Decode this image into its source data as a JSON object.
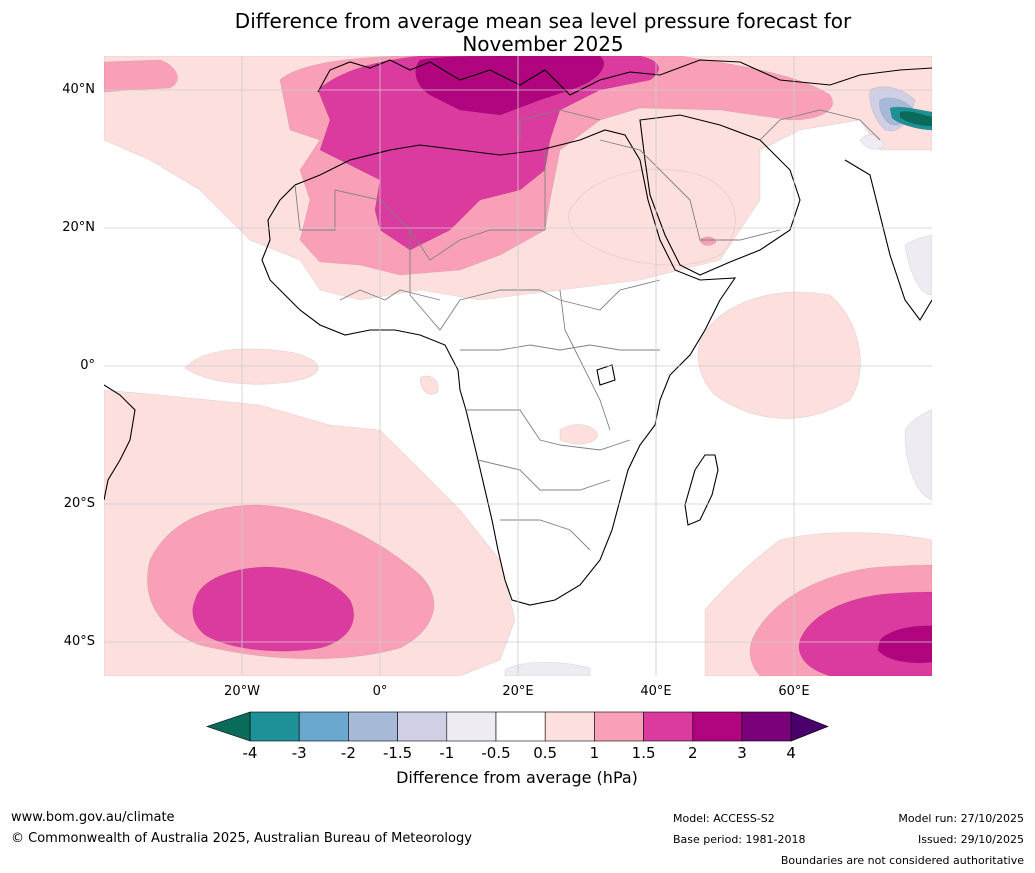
{
  "title": {
    "line1": "Difference from average mean sea level pressure forecast for",
    "line2": "November 2025"
  },
  "map": {
    "lat_labels": [
      "40°N",
      "20°N",
      "0°",
      "20°S",
      "40°S"
    ],
    "lon_labels": [
      "20°W",
      "0°",
      "20°E",
      "40°E",
      "60°E"
    ]
  },
  "legend": {
    "title": "Difference from average (hPa)",
    "ticks": [
      "-4",
      "-3",
      "-2",
      "-1.5",
      "-1",
      "-0.5",
      "0.5",
      "1",
      "1.5",
      "2",
      "3",
      "4"
    ],
    "colors": {
      "below_min": "#0b6b5b",
      "m4_m3": "#1d9197",
      "m3_m2": "#6aa8d0",
      "m2_m15": "#a6b9d7",
      "m15_m1": "#cfd0e5",
      "m1_m05": "#efebf2",
      "m05_05": "#ffffff",
      "p05_1": "#fde0de",
      "p1_15": "#f9a0b8",
      "p15_2": "#db3a9e",
      "p2_3": "#b1057f",
      "p3_4": "#7a017a",
      "above_max": "#49006a"
    }
  },
  "footer": {
    "website": "www.bom.gov.au/climate",
    "copyright": "© Commonwealth of Australia 2025, Australian Bureau of Meteorology",
    "model": "Model: ACCESS-S2",
    "base_period": "Base period: 1981-2018",
    "model_run": "Model run: 27/10/2025",
    "issued": "Issued: 29/10/2025",
    "disclaimer": "Boundaries are not considered authoritative"
  }
}
